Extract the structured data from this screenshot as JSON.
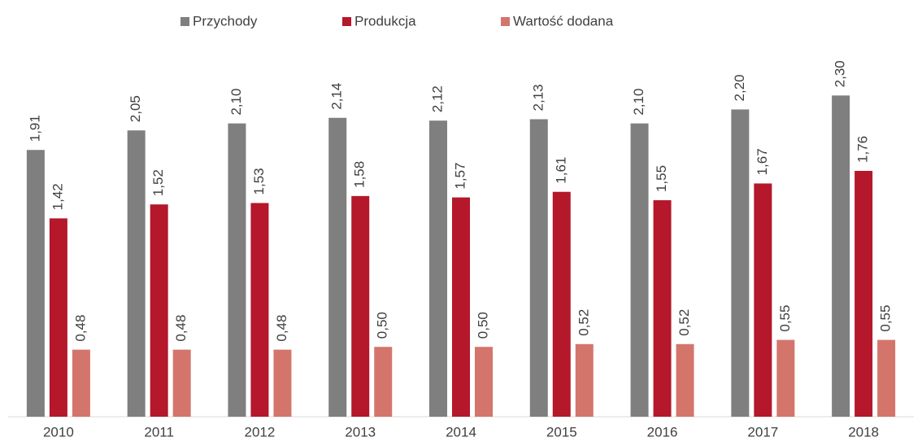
{
  "chart_data": {
    "type": "bar",
    "categories": [
      "2010",
      "2011",
      "2012",
      "2013",
      "2014",
      "2015",
      "2016",
      "2017",
      "2018"
    ],
    "series": [
      {
        "name": "Przychody",
        "color": "#7f7f7f",
        "values": [
          1.91,
          2.05,
          2.1,
          2.14,
          2.12,
          2.13,
          2.1,
          2.2,
          2.3
        ],
        "value_labels": [
          "1,91",
          "2,05",
          "2,10",
          "2,14",
          "2,12",
          "2,13",
          "2,10",
          "2,20",
          "2,30"
        ]
      },
      {
        "name": "Produkcja",
        "color": "#b5172b",
        "values": [
          1.42,
          1.52,
          1.53,
          1.58,
          1.57,
          1.61,
          1.55,
          1.67,
          1.76
        ],
        "value_labels": [
          "1,42",
          "1,52",
          "1,53",
          "1,58",
          "1,57",
          "1,61",
          "1,55",
          "1,67",
          "1,76"
        ]
      },
      {
        "name": "Wartość dodana",
        "color": "#d4756c",
        "values": [
          0.48,
          0.48,
          0.48,
          0.5,
          0.5,
          0.52,
          0.52,
          0.55,
          0.55
        ],
        "value_labels": [
          "0,48",
          "0,48",
          "0,48",
          "0,50",
          "0,50",
          "0,52",
          "0,52",
          "0,55",
          "0,55"
        ]
      }
    ],
    "ylim": [
      0,
      2.5
    ],
    "legend": "top"
  }
}
